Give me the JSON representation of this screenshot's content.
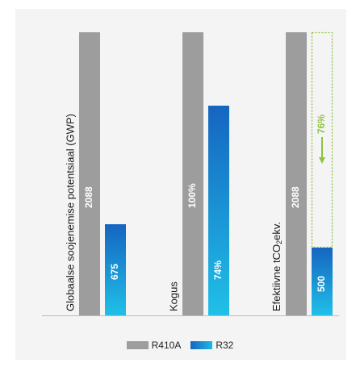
{
  "chart_data": {
    "type": "bar",
    "groups": [
      {
        "label": "Globaalse soojenemise potentsiaal (GWP)",
        "R410A": 2088,
        "R32": 675,
        "label_R410A": "2088",
        "label_R32": "675"
      },
      {
        "label": "Kogus",
        "R410A": 100,
        "R32": 74,
        "label_R410A": "100%",
        "label_R32": "74%"
      },
      {
        "label_main": "Efektiivne tCO",
        "label_sub": "2",
        "label_tail": "ekv.",
        "R410A": 2088,
        "R32": 500,
        "label_R410A": "2088",
        "label_R32": "500",
        "reduction": "76%"
      }
    ],
    "series": [
      {
        "name": "R410A",
        "color": "#9d9d9d"
      },
      {
        "name": "R32",
        "color": "#1a8fd6"
      }
    ],
    "colors": {
      "grey": "#9d9d9d",
      "blue_top": "#1565c0",
      "blue_bottom": "#20c0e8",
      "accent": "#8cc43c",
      "panel": "#f4f4f4"
    }
  }
}
